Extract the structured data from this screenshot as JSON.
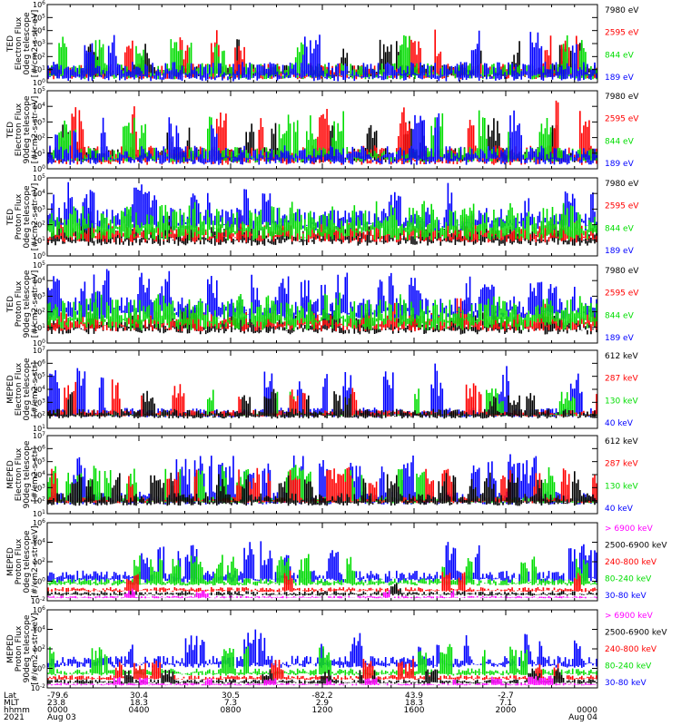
{
  "chart_data": {
    "type": "line",
    "x_axis": {
      "row_labels": [
        "Lat",
        "MLT",
        "hhmm",
        "2021"
      ],
      "ticks": [
        {
          "lat": "-79.6",
          "mlt": "23.8",
          "hhmm": "0000",
          "date": "Aug 03"
        },
        {
          "lat": "30.4",
          "mlt": "18.3",
          "hhmm": "0400",
          "date": ""
        },
        {
          "lat": "30.5",
          "mlt": "7.3",
          "hhmm": "0800",
          "date": ""
        },
        {
          "lat": "-82.2",
          "mlt": "2.9",
          "hhmm": "1200",
          "date": ""
        },
        {
          "lat": "43.9",
          "mlt": "18.3",
          "hhmm": "1600",
          "date": ""
        },
        {
          "lat": "-2.7",
          "mlt": "7.1",
          "hhmm": "2000",
          "date": ""
        },
        {
          "lat": "",
          "mlt": "",
          "hhmm": "0000",
          "date": "Aug 04"
        }
      ],
      "hours_range": [
        0,
        24
      ]
    },
    "panels": [
      {
        "ylabel": [
          "TED",
          "Electron Flux",
          "0deg telescope",
          "[#/cm2-s-str-eV]"
        ],
        "ylog": [
          0,
          6
        ],
        "tick_labels": [
          "10^0",
          "10^1",
          "10^2",
          "10^3",
          "10^4",
          "10^5",
          "10^6"
        ],
        "series": [
          {
            "name": "7980 eV",
            "color": "#000000",
            "base": 1.0,
            "spread": 0.4,
            "peak": 2.2,
            "density": 0.25
          },
          {
            "name": "2595 eV",
            "color": "#ff0000",
            "base": 1.0,
            "spread": 0.5,
            "peak": 2.8,
            "density": 0.25
          },
          {
            "name": "844 eV",
            "color": "#00dd00",
            "base": 1.0,
            "spread": 0.5,
            "peak": 2.4,
            "density": 0.2
          },
          {
            "name": "189 eV",
            "color": "#0000ff",
            "base": 1.0,
            "spread": 0.6,
            "peak": 2.6,
            "density": 0.25
          }
        ]
      },
      {
        "ylabel": [
          "TED",
          "Electron Flux",
          "90deg telescope",
          "[#/cm2-s-str-eV]"
        ],
        "ylog": [
          0,
          5
        ],
        "tick_labels": [
          "10^0",
          "10^1",
          "10^2",
          "10^3",
          "10^4",
          "10^5"
        ],
        "series": [
          {
            "name": "7980 eV",
            "color": "#000000",
            "base": 1.0,
            "spread": 0.4,
            "peak": 2.0,
            "density": 0.25
          },
          {
            "name": "2595 eV",
            "color": "#ff0000",
            "base": 1.0,
            "spread": 0.5,
            "peak": 3.0,
            "density": 0.25
          },
          {
            "name": "844 eV",
            "color": "#00dd00",
            "base": 1.0,
            "spread": 0.4,
            "peak": 2.4,
            "density": 0.2
          },
          {
            "name": "189 eV",
            "color": "#0000ff",
            "base": 1.0,
            "spread": 0.5,
            "peak": 2.6,
            "density": 0.25
          }
        ]
      },
      {
        "ylabel": [
          "TED",
          "Proton Flux",
          "0deg telescope",
          "[#/cm2-s-str-eV]"
        ],
        "ylog": [
          0,
          5
        ],
        "tick_labels": [
          "10^0",
          "10^1",
          "10^2",
          "10^3",
          "10^4",
          "10^5"
        ],
        "series": [
          {
            "name": "7980 eV",
            "color": "#000000",
            "base": 1.4,
            "spread": 0.5,
            "peak": 1.0,
            "density": 0.1
          },
          {
            "name": "2595 eV",
            "color": "#ff0000",
            "base": 1.6,
            "spread": 0.5,
            "peak": 1.0,
            "density": 0.1
          },
          {
            "name": "189 eV",
            "color": "#0000ff",
            "base": 2.5,
            "spread": 0.6,
            "peak": 1.8,
            "density": 0.5
          },
          {
            "name": "844 eV",
            "color": "#00dd00",
            "base": 2.2,
            "spread": 0.8,
            "peak": 0.6,
            "density": 0.8
          }
        ]
      },
      {
        "ylabel": [
          "TED",
          "Proton Flux",
          "90deg telescope",
          "[#/cm2-s-str-eV]"
        ],
        "ylog": [
          0,
          5
        ],
        "tick_labels": [
          "10^0",
          "10^1",
          "10^2",
          "10^3",
          "10^4",
          "10^5"
        ],
        "series": [
          {
            "name": "7980 eV",
            "color": "#000000",
            "base": 1.3,
            "spread": 0.5,
            "peak": 1.0,
            "density": 0.1
          },
          {
            "name": "2595 eV",
            "color": "#ff0000",
            "base": 1.5,
            "spread": 0.5,
            "peak": 1.0,
            "density": 0.1
          },
          {
            "name": "189 eV",
            "color": "#0000ff",
            "base": 2.4,
            "spread": 0.6,
            "peak": 1.8,
            "density": 0.5
          },
          {
            "name": "844 eV",
            "color": "#00dd00",
            "base": 2.0,
            "spread": 0.8,
            "peak": 0.6,
            "density": 0.8
          }
        ]
      },
      {
        "ylabel": [
          "MEPED",
          "Electron Flux",
          "0deg telescope",
          "[#/cm2-s-str]"
        ],
        "ylog": [
          1,
          7
        ],
        "tick_labels": [
          "10^1",
          "10^2",
          "10^3",
          "10^4",
          "10^5",
          "10^6",
          "10^7"
        ],
        "series": [
          {
            "name": "40 keV",
            "color": "#0000ff",
            "base": 2.3,
            "spread": 0.3,
            "peak": 3.4,
            "density": 0.3
          },
          {
            "name": "130 keV",
            "color": "#00dd00",
            "base": 2.1,
            "spread": 0.1,
            "peak": 2.0,
            "density": 0.2
          },
          {
            "name": "287 keV",
            "color": "#ff0000",
            "base": 2.2,
            "spread": 0.2,
            "peak": 2.4,
            "density": 0.2
          },
          {
            "name": "612 keV",
            "color": "#000000",
            "base": 2.2,
            "spread": 0.3,
            "peak": 1.6,
            "density": 0.2
          }
        ]
      },
      {
        "ylabel": [
          "MEPED",
          "Electron Flux",
          "90deg telescope",
          "[#/cm2-s-str]"
        ],
        "ylog": [
          1,
          7
        ],
        "tick_labels": [
          "10^1",
          "10^2",
          "10^3",
          "10^4",
          "10^5",
          "10^6",
          "10^7"
        ],
        "series": [
          {
            "name": "40 keV",
            "color": "#0000ff",
            "base": 2.3,
            "spread": 0.4,
            "peak": 3.0,
            "density": 0.55
          },
          {
            "name": "130 keV",
            "color": "#00dd00",
            "base": 2.1,
            "spread": 0.2,
            "peak": 2.6,
            "density": 0.5
          },
          {
            "name": "287 keV",
            "color": "#ff0000",
            "base": 2.1,
            "spread": 0.2,
            "peak": 2.4,
            "density": 0.45
          },
          {
            "name": "612 keV",
            "color": "#000000",
            "base": 2.2,
            "spread": 0.4,
            "peak": 1.8,
            "density": 0.4
          }
        ]
      },
      {
        "ylabel": [
          "MEPED",
          "Proton Flux",
          "0deg telescope",
          "[#/cm2-s-str-keV]"
        ],
        "ylog": [
          -2,
          6
        ],
        "tick_labels": [
          "10^-2",
          "10^0",
          "10^2",
          "10^4",
          "10^6"
        ],
        "series": [
          {
            "name": "30-80 keV",
            "color": "#0000ff",
            "base": 0.6,
            "spread": 0.5,
            "peak": 3.2,
            "density": 0.35
          },
          {
            "name": "80-240 keV",
            "color": "#00dd00",
            "base": 0.0,
            "spread": 0.3,
            "peak": 2.6,
            "density": 0.3
          },
          {
            "name": "240-800 keV",
            "color": "#ff0000",
            "base": -0.8,
            "spread": 0.2,
            "peak": 1.8,
            "density": 0.2
          },
          {
            "name": "2500-6900 keV",
            "color": "#000000",
            "base": -1.2,
            "spread": 0.2,
            "peak": 1.0,
            "density": 0.1
          },
          {
            "name": "> 6900 keV",
            "color": "#ff00ff",
            "base": -1.6,
            "spread": 0.1,
            "peak": 0.8,
            "density": 0.15
          }
        ]
      },
      {
        "ylabel": [
          "MEPED",
          "Proton Flux",
          "90deg telescope",
          "[#/cm2-s-str-keV]"
        ],
        "ylog": [
          -2,
          6
        ],
        "tick_labels": [
          "10^-2",
          "10^0",
          "10^2",
          "10^4",
          "10^6"
        ],
        "series": [
          {
            "name": "30-80 keV",
            "color": "#0000ff",
            "base": 0.8,
            "spread": 0.5,
            "peak": 3.0,
            "density": 0.35
          },
          {
            "name": "80-240 keV",
            "color": "#00dd00",
            "base": -0.3,
            "spread": 0.3,
            "peak": 2.6,
            "density": 0.3
          },
          {
            "name": "240-800 keV",
            "color": "#ff0000",
            "base": -0.9,
            "spread": 0.2,
            "peak": 1.8,
            "density": 0.2
          },
          {
            "name": "2500-6900 keV",
            "color": "#000000",
            "base": -1.3,
            "spread": 0.2,
            "peak": 1.2,
            "density": 0.15
          },
          {
            "name": "> 6900 keV",
            "color": "#ff00ff",
            "base": -1.6,
            "spread": 0.1,
            "peak": 0.8,
            "density": 0.15
          }
        ]
      }
    ],
    "legends": [
      [
        {
          "text": "7980 eV",
          "color": "#000000"
        },
        {
          "text": "2595 eV",
          "color": "#ff0000"
        },
        {
          "text": "844 eV",
          "color": "#00dd00"
        },
        {
          "text": "189 eV",
          "color": "#0000ff"
        }
      ],
      [
        {
          "text": "7980 eV",
          "color": "#000000"
        },
        {
          "text": "2595 eV",
          "color": "#ff0000"
        },
        {
          "text": "844 eV",
          "color": "#00dd00"
        },
        {
          "text": "189 eV",
          "color": "#0000ff"
        }
      ],
      [
        {
          "text": "7980 eV",
          "color": "#000000"
        },
        {
          "text": "2595 eV",
          "color": "#ff0000"
        },
        {
          "text": "844 eV",
          "color": "#00dd00"
        },
        {
          "text": "189 eV",
          "color": "#0000ff"
        }
      ],
      [
        {
          "text": "7980 eV",
          "color": "#000000"
        },
        {
          "text": "2595 eV",
          "color": "#ff0000"
        },
        {
          "text": "844 eV",
          "color": "#00dd00"
        },
        {
          "text": "189 eV",
          "color": "#0000ff"
        }
      ],
      [
        {
          "text": "612 keV",
          "color": "#000000"
        },
        {
          "text": "287 keV",
          "color": "#ff0000"
        },
        {
          "text": "130 keV",
          "color": "#00dd00"
        },
        {
          "text": "40 keV",
          "color": "#0000ff"
        }
      ],
      [
        {
          "text": "612 keV",
          "color": "#000000"
        },
        {
          "text": "287 keV",
          "color": "#ff0000"
        },
        {
          "text": "130 keV",
          "color": "#00dd00"
        },
        {
          "text": "40 keV",
          "color": "#0000ff"
        }
      ],
      [
        {
          "text": "> 6900 keV",
          "color": "#ff00ff"
        },
        {
          "text": "2500-6900 keV",
          "color": "#000000"
        },
        {
          "text": "240-800 keV",
          "color": "#ff0000"
        },
        {
          "text": "80-240 keV",
          "color": "#00dd00"
        },
        {
          "text": "30-80 keV",
          "color": "#0000ff"
        }
      ],
      [
        {
          "text": "> 6900 keV",
          "color": "#ff00ff"
        },
        {
          "text": "2500-6900 keV",
          "color": "#000000"
        },
        {
          "text": "240-800 keV",
          "color": "#ff0000"
        },
        {
          "text": "80-240 keV",
          "color": "#00dd00"
        },
        {
          "text": "30-80 keV",
          "color": "#0000ff"
        }
      ]
    ]
  }
}
